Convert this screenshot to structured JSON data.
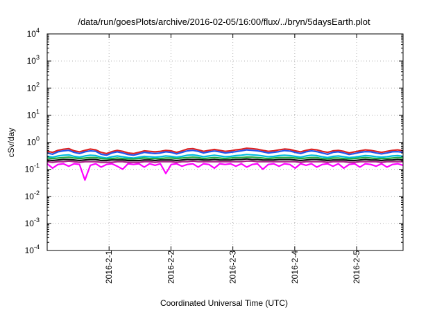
{
  "chart_data": {
    "type": "line",
    "title": "/data/run/goesPlots/archive/2016-02-05/16:00/flux/../bryn/5daysEarth.plot",
    "xlabel": "Coordinated Universal Time (UTC)",
    "ylabel": "cSv/day",
    "yscale": "log",
    "ylim": [
      0.0001,
      10000
    ],
    "y_ticks": [
      {
        "value": 0.0001,
        "base": "10",
        "exp": "-4"
      },
      {
        "value": 0.001,
        "base": "10",
        "exp": "-3"
      },
      {
        "value": 0.01,
        "base": "10",
        "exp": "-2"
      },
      {
        "value": 0.1,
        "base": "10",
        "exp": "-1"
      },
      {
        "value": 1,
        "base": "10",
        "exp": "0"
      },
      {
        "value": 10,
        "base": "10",
        "exp": "1"
      },
      {
        "value": 100,
        "base": "10",
        "exp": "2"
      },
      {
        "value": 1000,
        "base": "10",
        "exp": "3"
      },
      {
        "value": 10000,
        "base": "10",
        "exp": "4"
      }
    ],
    "xlim": [
      "2016-01-31 00:00",
      "2016-02-05 18:00"
    ],
    "x_ticks": [
      "2016-2-1",
      "2016-2-2",
      "2016-2-3",
      "2016-2-4",
      "2016-2-5"
    ],
    "grid": true,
    "series": [
      {
        "color": "#dd2222",
        "base": 0.5,
        "values": [
          0.46,
          0.42,
          0.5,
          0.55,
          0.58,
          0.48,
          0.44,
          0.5,
          0.56,
          0.52,
          0.42,
          0.38,
          0.45,
          0.5,
          0.46,
          0.4,
          0.38,
          0.42,
          0.48,
          0.46,
          0.44,
          0.46,
          0.5,
          0.48,
          0.42,
          0.48,
          0.56,
          0.58,
          0.52,
          0.46,
          0.5,
          0.54,
          0.5,
          0.46,
          0.48,
          0.52,
          0.55,
          0.6,
          0.58,
          0.55,
          0.5,
          0.46,
          0.48,
          0.52,
          0.56,
          0.54,
          0.48,
          0.44,
          0.5,
          0.55,
          0.52,
          0.46,
          0.42,
          0.48,
          0.5,
          0.46,
          0.4,
          0.44,
          0.48,
          0.52,
          0.5,
          0.46,
          0.42,
          0.46,
          0.5,
          0.52,
          0.48
        ]
      },
      {
        "color": "#2255ee",
        "base": 0.44,
        "values": [
          0.4,
          0.36,
          0.44,
          0.48,
          0.5,
          0.42,
          0.38,
          0.44,
          0.48,
          0.46,
          0.36,
          0.33,
          0.4,
          0.44,
          0.4,
          0.35,
          0.33,
          0.37,
          0.42,
          0.4,
          0.38,
          0.4,
          0.44,
          0.42,
          0.37,
          0.42,
          0.48,
          0.5,
          0.46,
          0.4,
          0.44,
          0.47,
          0.44,
          0.4,
          0.42,
          0.45,
          0.48,
          0.52,
          0.5,
          0.48,
          0.44,
          0.4,
          0.42,
          0.45,
          0.49,
          0.47,
          0.42,
          0.38,
          0.44,
          0.48,
          0.45,
          0.4,
          0.36,
          0.42,
          0.44,
          0.4,
          0.35,
          0.38,
          0.42,
          0.45,
          0.44,
          0.4,
          0.37,
          0.4,
          0.44,
          0.45,
          0.42
        ]
      },
      {
        "color": "#00bbdd",
        "base": 0.32,
        "values": [
          0.3,
          0.28,
          0.31,
          0.33,
          0.34,
          0.3,
          0.28,
          0.31,
          0.33,
          0.32,
          0.28,
          0.26,
          0.29,
          0.31,
          0.29,
          0.27,
          0.26,
          0.28,
          0.3,
          0.29,
          0.28,
          0.29,
          0.31,
          0.3,
          0.28,
          0.3,
          0.33,
          0.34,
          0.32,
          0.29,
          0.31,
          0.33,
          0.31,
          0.29,
          0.3,
          0.32,
          0.33,
          0.35,
          0.34,
          0.33,
          0.31,
          0.29,
          0.3,
          0.32,
          0.33,
          0.32,
          0.3,
          0.28,
          0.31,
          0.33,
          0.32,
          0.29,
          0.27,
          0.3,
          0.31,
          0.29,
          0.27,
          0.28,
          0.3,
          0.32,
          0.31,
          0.29,
          0.28,
          0.29,
          0.31,
          0.32,
          0.3
        ]
      },
      {
        "color": "#22aa44",
        "base": 0.27,
        "values": [
          0.26,
          0.25,
          0.26,
          0.27,
          0.28,
          0.26,
          0.25,
          0.26,
          0.27,
          0.27,
          0.25,
          0.24,
          0.25,
          0.26,
          0.25,
          0.24,
          0.24,
          0.25,
          0.26,
          0.25,
          0.25,
          0.25,
          0.26,
          0.26,
          0.25,
          0.26,
          0.27,
          0.28,
          0.27,
          0.25,
          0.26,
          0.27,
          0.26,
          0.25,
          0.26,
          0.27,
          0.27,
          0.28,
          0.28,
          0.27,
          0.26,
          0.25,
          0.26,
          0.27,
          0.27,
          0.27,
          0.26,
          0.25,
          0.26,
          0.27,
          0.27,
          0.25,
          0.24,
          0.26,
          0.26,
          0.25,
          0.24,
          0.25,
          0.26,
          0.27,
          0.26,
          0.25,
          0.25,
          0.25,
          0.26,
          0.27,
          0.26
        ]
      },
      {
        "color": "#111111",
        "base": 0.23,
        "values": [
          0.22,
          0.21,
          0.22,
          0.23,
          0.23,
          0.22,
          0.21,
          0.22,
          0.23,
          0.23,
          0.21,
          0.21,
          0.22,
          0.22,
          0.22,
          0.21,
          0.21,
          0.21,
          0.22,
          0.22,
          0.21,
          0.22,
          0.22,
          0.22,
          0.21,
          0.22,
          0.23,
          0.23,
          0.23,
          0.22,
          0.22,
          0.23,
          0.22,
          0.22,
          0.22,
          0.23,
          0.23,
          0.24,
          0.23,
          0.23,
          0.22,
          0.22,
          0.22,
          0.23,
          0.23,
          0.23,
          0.22,
          0.21,
          0.22,
          0.23,
          0.23,
          0.22,
          0.21,
          0.22,
          0.22,
          0.22,
          0.21,
          0.21,
          0.22,
          0.23,
          0.22,
          0.22,
          0.21,
          0.22,
          0.22,
          0.23,
          0.22
        ]
      },
      {
        "color": "#aa2288",
        "base": 0.19,
        "values": [
          0.19,
          0.18,
          0.19,
          0.19,
          0.2,
          0.19,
          0.18,
          0.19,
          0.19,
          0.19,
          0.18,
          0.18,
          0.18,
          0.19,
          0.19,
          0.18,
          0.18,
          0.18,
          0.19,
          0.19,
          0.18,
          0.19,
          0.19,
          0.19,
          0.18,
          0.19,
          0.19,
          0.2,
          0.19,
          0.19,
          0.19,
          0.19,
          0.19,
          0.19,
          0.19,
          0.19,
          0.19,
          0.2,
          0.2,
          0.19,
          0.19,
          0.19,
          0.19,
          0.19,
          0.19,
          0.19,
          0.19,
          0.18,
          0.19,
          0.19,
          0.19,
          0.19,
          0.18,
          0.19,
          0.19,
          0.19,
          0.18,
          0.18,
          0.19,
          0.19,
          0.19,
          0.19,
          0.18,
          0.19,
          0.19,
          0.19,
          0.19
        ]
      },
      {
        "color": "#ff00ff",
        "base": 0.16,
        "values": [
          0.16,
          0.11,
          0.15,
          0.16,
          0.13,
          0.16,
          0.15,
          0.04,
          0.14,
          0.16,
          0.12,
          0.15,
          0.16,
          0.13,
          0.1,
          0.16,
          0.15,
          0.16,
          0.12,
          0.16,
          0.14,
          0.16,
          0.07,
          0.15,
          0.16,
          0.13,
          0.15,
          0.16,
          0.12,
          0.16,
          0.15,
          0.11,
          0.16,
          0.15,
          0.16,
          0.13,
          0.16,
          0.12,
          0.15,
          0.16,
          0.1,
          0.15,
          0.16,
          0.13,
          0.16,
          0.15,
          0.11,
          0.16,
          0.14,
          0.16,
          0.12,
          0.15,
          0.16,
          0.13,
          0.16,
          0.11,
          0.15,
          0.16,
          0.12,
          0.16,
          0.15,
          0.13,
          0.16,
          0.12,
          0.15,
          0.16,
          0.14
        ]
      }
    ]
  }
}
